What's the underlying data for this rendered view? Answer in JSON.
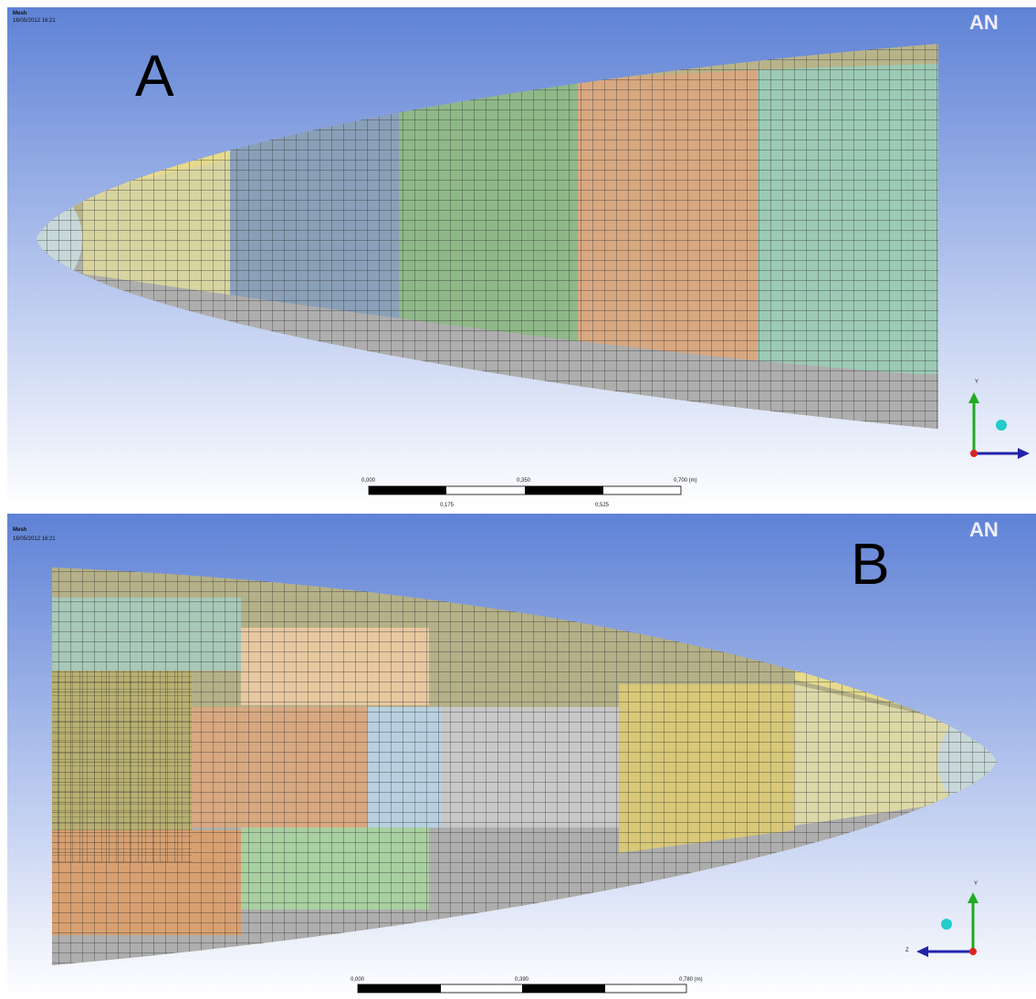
{
  "panels": [
    {
      "header": {
        "title": "Mesh",
        "date": "16/05/2012 16:21"
      },
      "logo": "AN",
      "label": "A",
      "scale": {
        "top": [
          "0,000",
          "0,350",
          "0,700 (m)"
        ],
        "bottom": [
          "0,175",
          "0,525"
        ]
      },
      "triad": [
        "Y"
      ]
    },
    {
      "header": {
        "title": "Mesh",
        "date": "16/05/2012 16:21"
      },
      "logo": "AN",
      "label": "B",
      "scale": {
        "top": [
          "0,000",
          "0,390",
          "0,780 (m)"
        ]
      },
      "triad": [
        "Y",
        "Z"
      ]
    }
  ]
}
